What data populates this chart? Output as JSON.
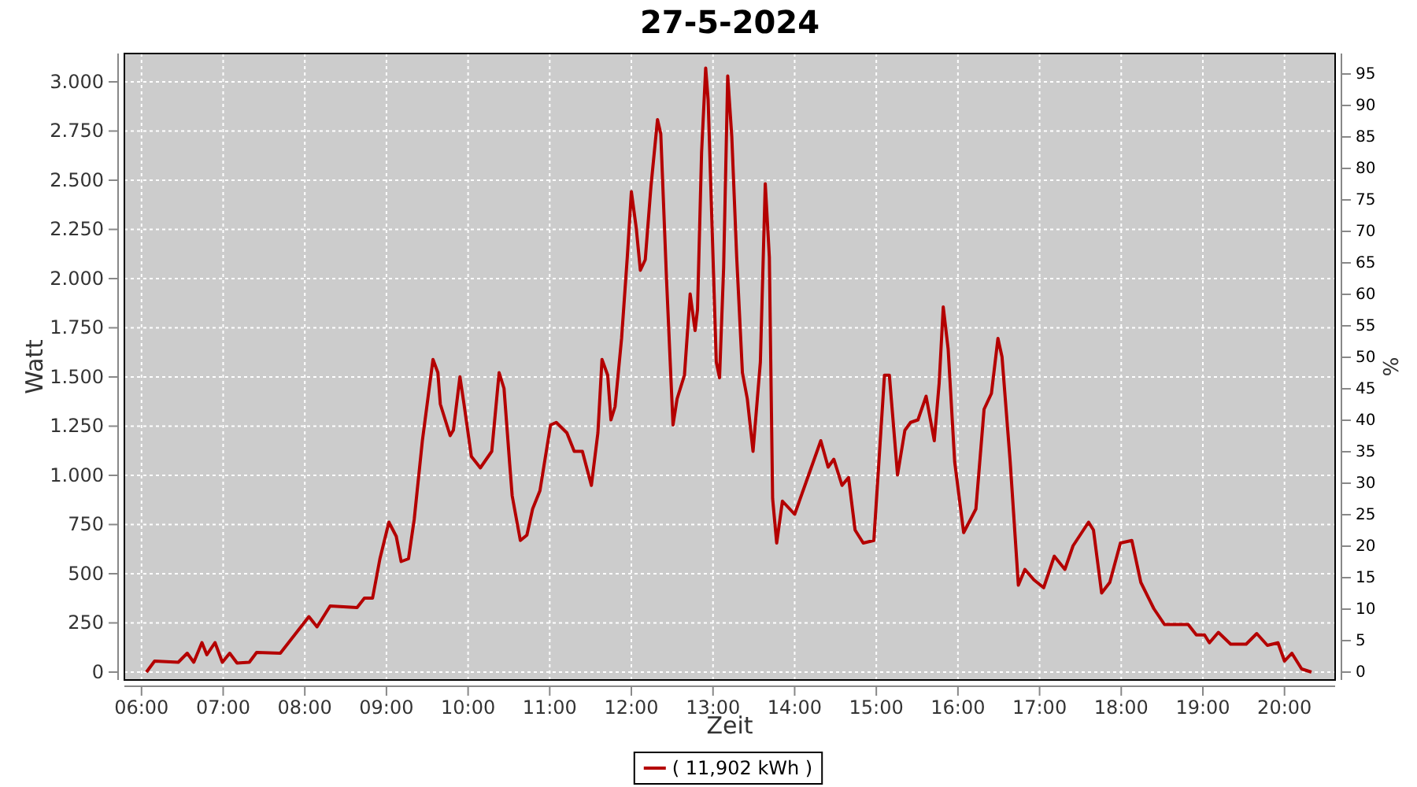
{
  "chart_data": {
    "type": "line",
    "title": "27-5-2024",
    "xlabel": "Zeit",
    "ylabel": "Watt",
    "y2label": "%",
    "grid": true,
    "legend": "bottom",
    "marker": "none",
    "line_style": "solid",
    "xlim": [
      5.79,
      20.62
    ],
    "xticks": [
      {
        "value": 6,
        "label": "06:00"
      },
      {
        "value": 7,
        "label": "07:00"
      },
      {
        "value": 8,
        "label": "08:00"
      },
      {
        "value": 9,
        "label": "09:00"
      },
      {
        "value": 10,
        "label": "10:00"
      },
      {
        "value": 11,
        "label": "11:00"
      },
      {
        "value": 12,
        "label": "12:00"
      },
      {
        "value": 13,
        "label": "13:00"
      },
      {
        "value": 14,
        "label": "14:00"
      },
      {
        "value": 15,
        "label": "15:00"
      },
      {
        "value": 16,
        "label": "16:00"
      },
      {
        "value": 17,
        "label": "17:00"
      },
      {
        "value": 18,
        "label": "18:00"
      },
      {
        "value": 19,
        "label": "19:00"
      },
      {
        "value": 20,
        "label": "20:00"
      }
    ],
    "ylim": [
      -40,
      3144
    ],
    "yticks": [
      {
        "value": 0,
        "label": "0"
      },
      {
        "value": 250,
        "label": "250"
      },
      {
        "value": 500,
        "label": "500"
      },
      {
        "value": 750,
        "label": "750"
      },
      {
        "value": 1000,
        "label": "1.000"
      },
      {
        "value": 1250,
        "label": "1.250"
      },
      {
        "value": 1500,
        "label": "1.500"
      },
      {
        "value": 1750,
        "label": "1.750"
      },
      {
        "value": 2000,
        "label": "2.000"
      },
      {
        "value": 2250,
        "label": "2.250"
      },
      {
        "value": 2500,
        "label": "2.500"
      },
      {
        "value": 2750,
        "label": "2.750"
      },
      {
        "value": 3000,
        "label": "3.000"
      }
    ],
    "y2lim": [
      -1.25,
      98.25
    ],
    "y2ticks": [
      0,
      5,
      10,
      15,
      20,
      25,
      30,
      35,
      40,
      45,
      50,
      55,
      60,
      65,
      70,
      75,
      80,
      85,
      90,
      95
    ],
    "series": [
      {
        "name": "( 11,902 kWh )",
        "color": "#b40000",
        "x": [
          6.06,
          6.16,
          6.45,
          6.56,
          6.64,
          6.74,
          6.8,
          6.9,
          6.99,
          7.08,
          7.17,
          7.32,
          7.41,
          7.7,
          8.05,
          8.15,
          8.31,
          8.64,
          8.73,
          8.83,
          8.92,
          9.03,
          9.12,
          9.18,
          9.27,
          9.34,
          9.44,
          9.57,
          9.63,
          9.66,
          9.78,
          9.82,
          9.9,
          9.95,
          10.04,
          10.15,
          10.29,
          10.38,
          10.44,
          10.51,
          10.54,
          10.64,
          10.72,
          10.79,
          10.88,
          11.01,
          11.08,
          11.21,
          11.3,
          11.4,
          11.51,
          11.59,
          11.64,
          11.71,
          11.75,
          11.8,
          11.88,
          11.95,
          12,
          12.06,
          12.11,
          12.17,
          12.24,
          12.32,
          12.36,
          12.43,
          12.51,
          12.56,
          12.65,
          12.72,
          12.78,
          12.81,
          12.86,
          12.91,
          12.94,
          13.04,
          13.08,
          13.13,
          13.18,
          13.23,
          13.29,
          13.36,
          13.42,
          13.49,
          13.58,
          13.64,
          13.69,
          13.73,
          13.78,
          13.85,
          14,
          14.16,
          14.32,
          14.41,
          14.48,
          14.58,
          14.66,
          14.74,
          14.84,
          14.97,
          15.1,
          15.16,
          15.26,
          15.35,
          15.42,
          15.51,
          15.61,
          15.71,
          15.77,
          15.82,
          15.88,
          15.96,
          16.07,
          16.22,
          16.32,
          16.41,
          16.49,
          16.54,
          16.64,
          16.74,
          16.82,
          16.93,
          17.05,
          17.18,
          17.31,
          17.41,
          17.6,
          17.66,
          17.76,
          17.86,
          17.99,
          18.13,
          18.24,
          18.4,
          18.53,
          18.82,
          18.92,
          19.02,
          19.08,
          19.19,
          19.34,
          19.53,
          19.66,
          19.79,
          19.92,
          20,
          20.09,
          20.21,
          20.33
        ],
        "values": [
          0,
          56,
          50,
          96,
          50,
          150,
          88,
          150,
          50,
          96,
          46,
          50,
          100,
          96,
          282,
          230,
          336,
          328,
          376,
          376,
          576,
          762,
          690,
          562,
          576,
          776,
          1176,
          1589,
          1522,
          1362,
          1202,
          1230,
          1501,
          1362,
          1096,
          1038,
          1122,
          1522,
          1442,
          1056,
          896,
          669,
          696,
          829,
          922,
          1256,
          1269,
          1216,
          1122,
          1122,
          949,
          1216,
          1589,
          1509,
          1282,
          1349,
          1696,
          2109,
          2442,
          2256,
          2042,
          2096,
          2469,
          2808,
          2736,
          2002,
          1256,
          1389,
          1509,
          1922,
          1736,
          1842,
          2642,
          3070,
          2909,
          1576,
          1496,
          2056,
          3030,
          2722,
          2109,
          1522,
          1389,
          1122,
          1576,
          2482,
          2109,
          882,
          656,
          869,
          802,
          989,
          1176,
          1042,
          1082,
          949,
          989,
          722,
          656,
          669,
          1509,
          1509,
          1002,
          1229,
          1269,
          1282,
          1402,
          1176,
          1469,
          1856,
          1642,
          1069,
          709,
          829,
          1336,
          1416,
          1696,
          1602,
          1069,
          442,
          522,
          469,
          429,
          589,
          522,
          642,
          762,
          722,
          402,
          456,
          656,
          669,
          456,
          322,
          242,
          242,
          189,
          189,
          149,
          202,
          142,
          142,
          196,
          136,
          149,
          56,
          96,
          16,
          0
        ]
      }
    ]
  }
}
